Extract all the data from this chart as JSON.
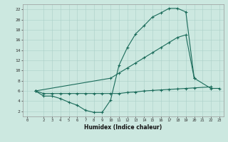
{
  "xlabel": "Humidex (Indice chaleur)",
  "bg_color": "#cce8e0",
  "grid_color": "#aacfc8",
  "line_color": "#1a6b5a",
  "xlim": [
    -0.5,
    23.5
  ],
  "ylim": [
    1,
    23
  ],
  "xticks": [
    0,
    2,
    3,
    4,
    5,
    6,
    7,
    8,
    9,
    10,
    11,
    12,
    13,
    14,
    15,
    16,
    17,
    18,
    19,
    20,
    21,
    22,
    23
  ],
  "yticks": [
    2,
    4,
    6,
    8,
    10,
    12,
    14,
    16,
    18,
    20,
    22
  ],
  "line1_x": [
    1,
    2,
    3,
    4,
    5,
    6,
    7,
    8,
    9,
    10,
    11,
    12,
    13,
    14,
    15,
    16,
    17,
    18,
    19,
    20,
    22,
    23
  ],
  "line1_y": [
    6.0,
    5.0,
    5.0,
    4.5,
    3.8,
    3.2,
    2.2,
    1.8,
    1.8,
    4.2,
    11.0,
    14.5,
    17.2,
    18.8,
    20.5,
    21.3,
    22.2,
    22.2,
    21.5,
    8.5,
    6.5,
    6.5
  ],
  "line2_x": [
    1,
    2,
    3,
    4,
    5,
    6,
    7,
    8,
    9,
    10,
    11,
    12,
    13,
    14,
    15,
    16,
    17,
    18,
    19,
    20,
    22
  ],
  "line2_y": [
    6.0,
    5.5,
    5.5,
    5.5,
    5.5,
    5.5,
    5.5,
    5.5,
    5.5,
    5.5,
    5.5,
    5.7,
    5.8,
    6.0,
    6.1,
    6.2,
    6.3,
    6.4,
    6.5,
    6.6,
    6.8
  ],
  "line3_x": [
    1,
    10,
    11,
    12,
    13,
    14,
    15,
    16,
    17,
    18,
    19,
    20
  ],
  "line3_y": [
    6.0,
    8.5,
    9.5,
    10.5,
    11.5,
    12.5,
    13.5,
    14.5,
    15.5,
    16.5,
    17.0,
    8.5
  ]
}
